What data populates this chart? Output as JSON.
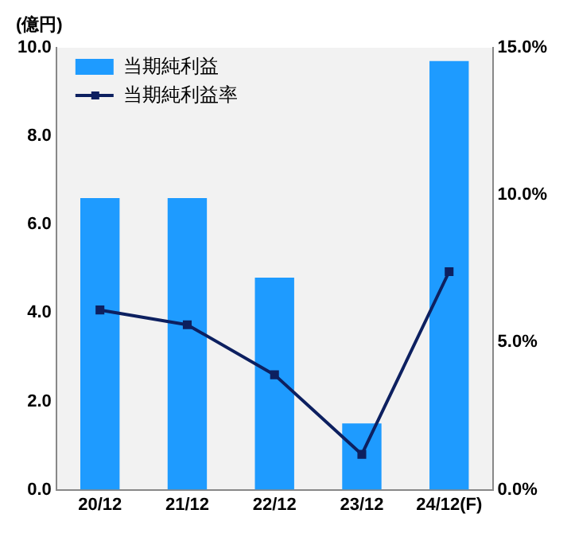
{
  "chart_data": {
    "type": "bar",
    "ylabel": "(億円)",
    "categories": [
      "20/12",
      "21/12",
      "22/12",
      "23/12",
      "24/12(F)"
    ],
    "series": [
      {
        "name": "当期純利益",
        "color": "#1e9bff",
        "values": [
          6.6,
          6.6,
          4.8,
          1.5,
          9.7
        ]
      },
      {
        "name": "当期純利益率",
        "type": "line",
        "axis": "y2",
        "color": "#0d2060",
        "values": [
          6.1,
          5.6,
          3.9,
          1.2,
          7.4
        ]
      }
    ],
    "ylim": [
      0,
      10
    ],
    "yticks": [
      {
        "value": 0,
        "label": "0.0"
      },
      {
        "value": 2,
        "label": "2.0"
      },
      {
        "value": 4,
        "label": "4.0"
      },
      {
        "value": 6,
        "label": "6.0"
      },
      {
        "value": 8,
        "label": "8.0"
      },
      {
        "value": 10,
        "label": "10.0"
      }
    ],
    "y2lim": [
      0,
      15
    ],
    "y2ticks": [
      {
        "value": 0,
        "label": "0.0%"
      },
      {
        "value": 5,
        "label": "5.0%"
      },
      {
        "value": 10,
        "label": "10.0%"
      },
      {
        "value": 15,
        "label": "15.0%"
      }
    ],
    "grid": false,
    "legend": "top left",
    "marker": "square",
    "line_style": "solid"
  }
}
